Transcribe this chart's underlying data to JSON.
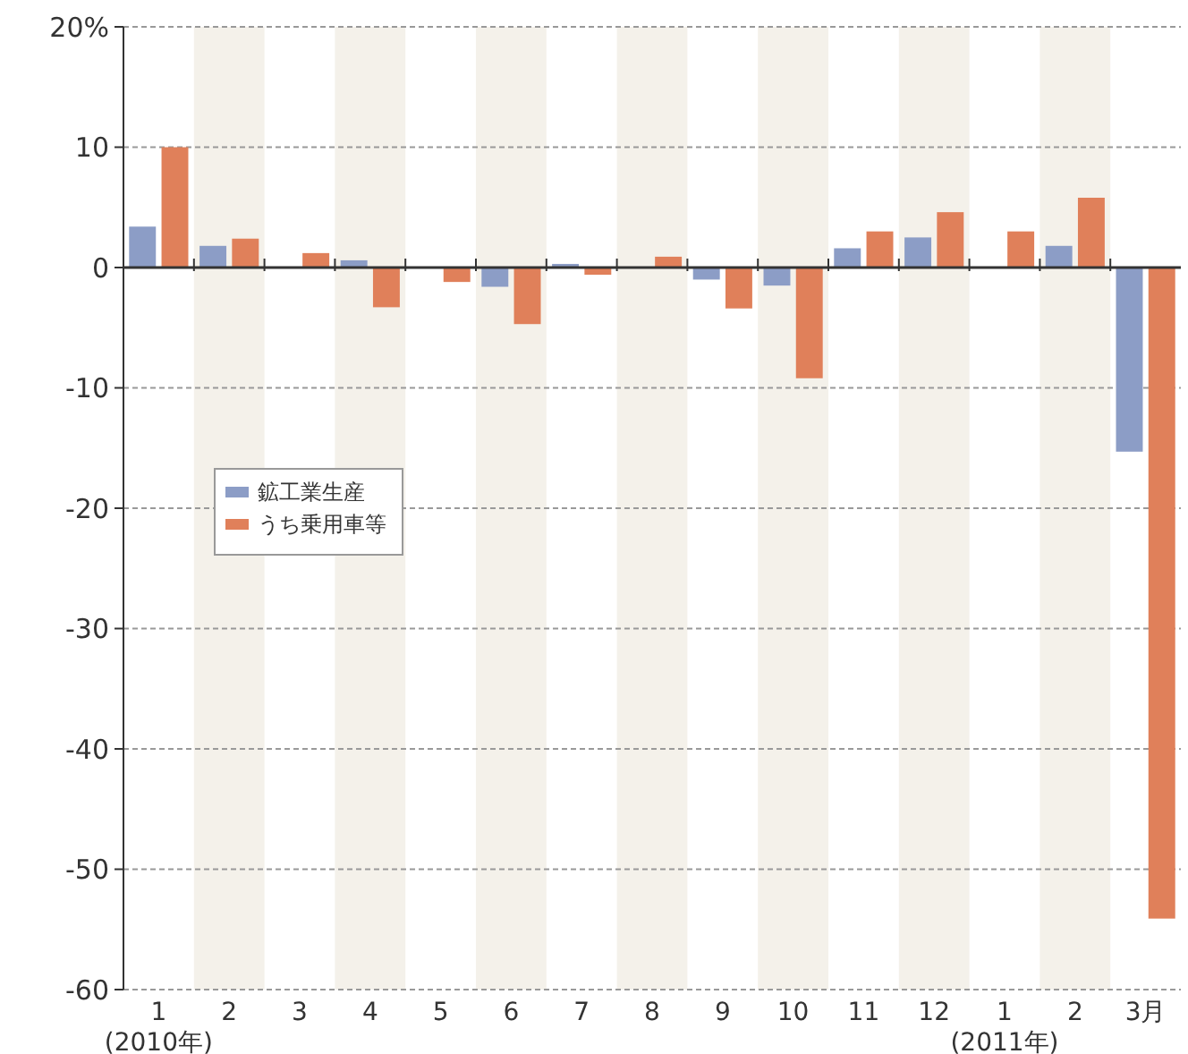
{
  "chart_data": {
    "type": "bar",
    "categories": [
      "1\n(2010年)",
      "2",
      "3",
      "4",
      "5",
      "6",
      "7",
      "8",
      "9",
      "10",
      "11",
      "12",
      "1\n(2011年)",
      "2",
      "3月"
    ],
    "series": [
      {
        "name": "鉱工業生産",
        "color": "#8c9dc6",
        "values": [
          3.4,
          1.8,
          null,
          0.6,
          0,
          -1.6,
          0.3,
          0,
          -1.0,
          -1.5,
          1.6,
          2.5,
          0,
          1.8,
          -15.3
        ]
      },
      {
        "name": "うち乗用車等",
        "color": "#e0805a",
        "values": [
          10.0,
          2.4,
          1.2,
          -3.3,
          -1.2,
          -4.7,
          -0.6,
          0.9,
          -3.4,
          -9.2,
          3.0,
          4.6,
          3.0,
          5.8,
          -54.1
        ]
      }
    ],
    "ylim": [
      -60,
      20
    ],
    "yticks": [
      -60,
      -50,
      -40,
      -30,
      -20,
      -10,
      0,
      10,
      {
        "value": 20,
        "label": "20%"
      }
    ],
    "grid": "y",
    "legend": "left"
  }
}
